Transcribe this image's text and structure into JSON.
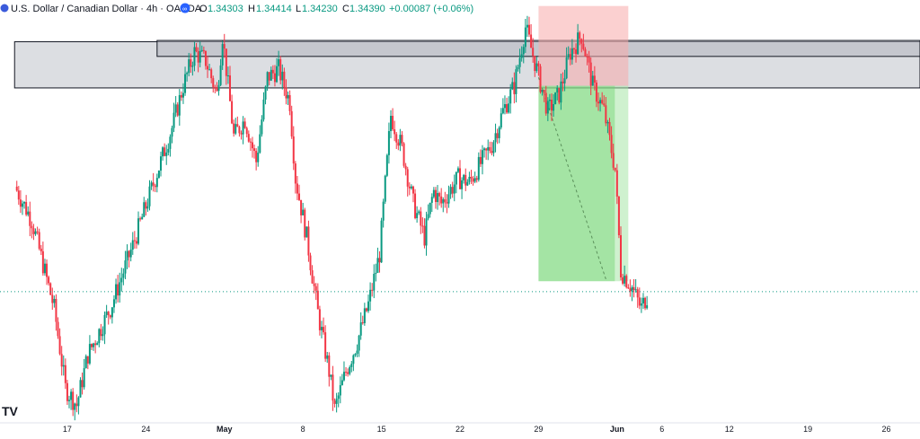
{
  "header": {
    "title": "U.S. Dollar / Canadian Dollar · 4h · OANDA",
    "ohlc": [
      {
        "label": "O",
        "value": "1.34303"
      },
      {
        "label": "H",
        "value": "1.34414"
      },
      {
        "label": "L",
        "value": "1.34230"
      },
      {
        "label": "C",
        "value": "1.34390"
      }
    ],
    "change": "+0.00087 (+0.06%)"
  },
  "logo_text": "TV",
  "colors": {
    "up": "#089981",
    "down": "#f23645",
    "zone_fill": "#b2b5be",
    "zone_stroke": "#131722",
    "stop_fill": "#f7a9a9",
    "target_fill": "#a8e6a8",
    "target_dark": "#6fd46f",
    "price_line": "#089981"
  },
  "chart_data": {
    "type": "candlestick",
    "x_ticks": [
      {
        "label": "17",
        "bold": false,
        "day": 17
      },
      {
        "label": "24",
        "bold": false,
        "day": 24
      },
      {
        "label": "May",
        "bold": true,
        "day": 31
      },
      {
        "label": "8",
        "bold": false,
        "day": 38
      },
      {
        "label": "15",
        "bold": false,
        "day": 45
      },
      {
        "label": "22",
        "bold": false,
        "day": 52
      },
      {
        "label": "29",
        "bold": false,
        "day": 59
      },
      {
        "label": "Jun",
        "bold": true,
        "day": 66
      },
      {
        "label": "6",
        "bold": false,
        "day": 70
      },
      {
        "label": "12",
        "bold": false,
        "day": 76
      },
      {
        "label": "19",
        "bold": false,
        "day": 83
      },
      {
        "label": "26",
        "bold": false,
        "day": 90
      }
    ],
    "x_range_days": [
      11,
      93
    ],
    "y_range": [
      0,
      100
    ],
    "price_path": [
      [
        12.5,
        56
      ],
      [
        14,
        48
      ],
      [
        16,
        27
      ],
      [
        17,
        8
      ],
      [
        18,
        4
      ],
      [
        19,
        16
      ],
      [
        21,
        27
      ],
      [
        23,
        42
      ],
      [
        25,
        58
      ],
      [
        26.5,
        70
      ],
      [
        27.5,
        80
      ],
      [
        28.5,
        88
      ],
      [
        29.5,
        86
      ],
      [
        30.5,
        78
      ],
      [
        31,
        92
      ],
      [
        32,
        68
      ],
      [
        33,
        72
      ],
      [
        34,
        62
      ],
      [
        35,
        82
      ],
      [
        36,
        84
      ],
      [
        37,
        76
      ],
      [
        37.5,
        58
      ],
      [
        38.5,
        44
      ],
      [
        39.5,
        26
      ],
      [
        40.5,
        12
      ],
      [
        41,
        3
      ],
      [
        42,
        12
      ],
      [
        43,
        19
      ],
      [
        44,
        28
      ],
      [
        45,
        40
      ],
      [
        46,
        73
      ],
      [
        47,
        65
      ],
      [
        48,
        52
      ],
      [
        49,
        44
      ],
      [
        49.8,
        55
      ],
      [
        50.5,
        52
      ],
      [
        52,
        58
      ],
      [
        53,
        57
      ],
      [
        55,
        66
      ],
      [
        56,
        74
      ],
      [
        57,
        80
      ],
      [
        58,
        94
      ],
      [
        59,
        84
      ],
      [
        60,
        74
      ],
      [
        61,
        78
      ],
      [
        62,
        88
      ],
      [
        63,
        92
      ],
      [
        64,
        80
      ],
      [
        65,
        74
      ],
      [
        66,
        60
      ],
      [
        66.5,
        36
      ],
      [
        67.5,
        32
      ],
      [
        68.3,
        27
      ],
      [
        68.8,
        30
      ]
    ],
    "zones": [
      {
        "day_from": 12.3,
        "day_to": 93,
        "y_from": 79.5,
        "y_to": 90.5
      },
      {
        "day_from": 25,
        "day_to": 93,
        "y_from": 87,
        "y_to": 90.8
      }
    ],
    "position": {
      "day_from": 59,
      "day_to": 67,
      "stop_top": 99,
      "entry": 80,
      "target": 33.5
    },
    "trend_line": {
      "from": [
        59,
        82
      ],
      "to": [
        65,
        34
      ]
    },
    "current_price_y": 31
  }
}
